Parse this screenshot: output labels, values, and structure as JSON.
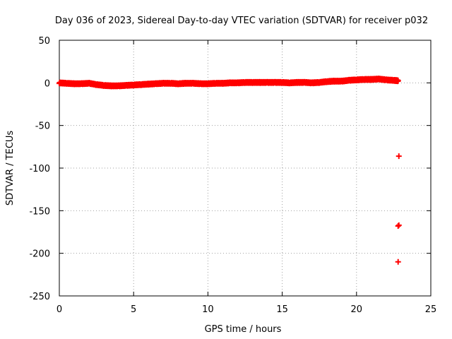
{
  "chart_data": {
    "type": "scatter",
    "title": "Day 036 of 2023, Sidereal Day-to-day VTEC variation (SDTVAR) for receiver p032",
    "xlabel": "GPS time / hours",
    "ylabel": "SDTVAR / TECUs",
    "xlim": [
      0,
      25
    ],
    "ylim": [
      -250,
      50
    ],
    "xticks": [
      0,
      5,
      10,
      15,
      20,
      25
    ],
    "xtick_labels": [
      "0",
      "5",
      "10",
      "15",
      "20",
      "25"
    ],
    "yticks": [
      50,
      0,
      -50,
      -100,
      -150,
      -200,
      -250
    ],
    "ytick_labels": [
      "50",
      "0",
      "-50",
      "-100",
      "-150",
      "-200",
      "-250"
    ],
    "grid": true,
    "marker": "plus",
    "series": [
      {
        "name": "SDTVAR",
        "color": "#ff0000",
        "profile": [
          [
            0.0,
            0.0
          ],
          [
            0.5,
            -0.5
          ],
          [
            1.0,
            -1.0
          ],
          [
            1.5,
            -1.0
          ],
          [
            2.0,
            -0.5
          ],
          [
            2.5,
            -2.0
          ],
          [
            3.0,
            -3.0
          ],
          [
            3.5,
            -3.5
          ],
          [
            4.0,
            -3.5
          ],
          [
            4.5,
            -3.0
          ],
          [
            5.0,
            -2.5
          ],
          [
            5.5,
            -2.0
          ],
          [
            6.0,
            -1.5
          ],
          [
            6.5,
            -1.0
          ],
          [
            7.0,
            -0.5
          ],
          [
            7.5,
            -0.5
          ],
          [
            8.0,
            -1.0
          ],
          [
            8.5,
            -0.5
          ],
          [
            9.0,
            -0.5
          ],
          [
            9.5,
            -1.0
          ],
          [
            10.0,
            -1.0
          ],
          [
            10.5,
            -0.5
          ],
          [
            11.0,
            -0.5
          ],
          [
            11.5,
            0.0
          ],
          [
            12.0,
            0.0
          ],
          [
            12.5,
            0.5
          ],
          [
            13.0,
            0.5
          ],
          [
            13.5,
            0.5
          ],
          [
            14.0,
            0.5
          ],
          [
            14.5,
            0.5
          ],
          [
            15.0,
            0.5
          ],
          [
            15.5,
            0.0
          ],
          [
            16.0,
            0.5
          ],
          [
            16.5,
            0.5
          ],
          [
            17.0,
            0.0
          ],
          [
            17.5,
            0.5
          ],
          [
            18.0,
            1.5
          ],
          [
            18.5,
            2.0
          ],
          [
            19.0,
            2.0
          ],
          [
            19.5,
            3.0
          ],
          [
            20.0,
            3.5
          ],
          [
            20.5,
            4.0
          ],
          [
            21.0,
            4.0
          ],
          [
            21.5,
            4.5
          ],
          [
            22.0,
            3.5
          ],
          [
            22.5,
            3.0
          ],
          [
            22.8,
            2.5
          ]
        ],
        "outliers": [
          [
            22.85,
            -86
          ],
          [
            22.8,
            -168
          ],
          [
            22.85,
            -167
          ],
          [
            22.8,
            -210
          ]
        ]
      }
    ]
  }
}
